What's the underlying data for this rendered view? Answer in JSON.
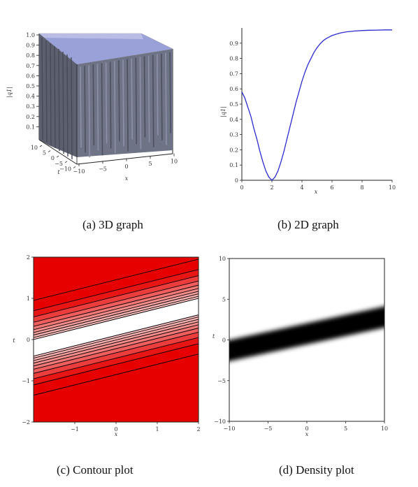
{
  "captions": {
    "a": "(a) 3D graph",
    "b": "(b) 2D graph",
    "c": "(c) Contour plot",
    "d": "(d) Density plot"
  },
  "chart_data": [
    {
      "type": "surface",
      "panel": "a",
      "zlabel": "|q1|",
      "xlabel": "x",
      "ylabel": "t",
      "x_ticks": [
        "−10",
        "−5",
        "0",
        "5",
        "10"
      ],
      "t_ticks": [
        "10",
        "5",
        "0",
        "−5",
        "−10"
      ],
      "z_ticks": [
        "1.0",
        "0.9",
        "0.8",
        "0.7",
        "0.6",
        "0.5",
        "0.4",
        "0.3",
        "0.2",
        "0.1"
      ],
      "xlim": [
        -10,
        10
      ],
      "ylim": [
        -10,
        10
      ],
      "zlim": [
        0,
        1
      ],
      "colors": {
        "top": "#9aa0d8",
        "side": "#6f7386",
        "dark": "#3d4350"
      }
    },
    {
      "type": "line",
      "panel": "b",
      "ylabel": "|q1|",
      "xlabel": "x",
      "xlim": [
        0,
        10
      ],
      "ylim": [
        0,
        1
      ],
      "x_ticks": [
        "0",
        "2",
        "4",
        "6",
        "8",
        "10"
      ],
      "y_ticks": [
        "0",
        "0.1",
        "0.2",
        "0.3",
        "0.4",
        "0.5",
        "0.6",
        "0.7",
        "0.8",
        "0.9"
      ],
      "series": [
        {
          "color": "#2b2bd0",
          "x": [
            0,
            0.2,
            0.4,
            0.6,
            0.8,
            1.0,
            1.2,
            1.4,
            1.6,
            1.8,
            2.0,
            2.2,
            2.4,
            2.6,
            2.8,
            3.0,
            3.2,
            3.4,
            3.6,
            3.8,
            4.0,
            4.2,
            4.4,
            4.6,
            4.8,
            5.0,
            5.2,
            5.4,
            5.6,
            5.8,
            6.0,
            6.3,
            6.6,
            7.0,
            7.5,
            8.0,
            8.5,
            9.0,
            9.5,
            10.0
          ],
          "y": [
            0.58,
            0.54,
            0.48,
            0.42,
            0.34,
            0.27,
            0.19,
            0.12,
            0.06,
            0.02,
            0.0,
            0.02,
            0.06,
            0.12,
            0.19,
            0.27,
            0.35,
            0.43,
            0.51,
            0.58,
            0.65,
            0.71,
            0.76,
            0.8,
            0.84,
            0.87,
            0.895,
            0.915,
            0.93,
            0.94,
            0.95,
            0.96,
            0.968,
            0.975,
            0.98,
            0.983,
            0.985,
            0.986,
            0.987,
            0.987
          ]
        }
      ]
    },
    {
      "type": "contour",
      "panel": "c",
      "xlabel": "x",
      "ylabel": "t",
      "xlim": [
        -2,
        2
      ],
      "ylim": [
        -2,
        2
      ],
      "x_ticks": [
        "−1",
        "0",
        "1",
        "2"
      ],
      "y_ticks": [
        "2",
        "1",
        "0",
        "−1",
        "−2"
      ],
      "slope": 0.25,
      "center_t": 0.3,
      "colors": {
        "fill": "#e60000",
        "line": "#000000"
      }
    },
    {
      "type": "heatmap",
      "panel": "d",
      "xlabel": "x",
      "ylabel": "t",
      "xlim": [
        -10,
        10
      ],
      "ylim": [
        -10,
        10
      ],
      "x_ticks": [
        "−10",
        "−5",
        "0",
        "5",
        "10"
      ],
      "y_ticks": [
        "10",
        "5",
        "0",
        "−5",
        "−10"
      ],
      "band_start": [
        -10,
        -1.5
      ],
      "band_end": [
        10,
        3.0
      ],
      "colors": {
        "band": "#000000",
        "bg": "#ffffff"
      }
    }
  ]
}
